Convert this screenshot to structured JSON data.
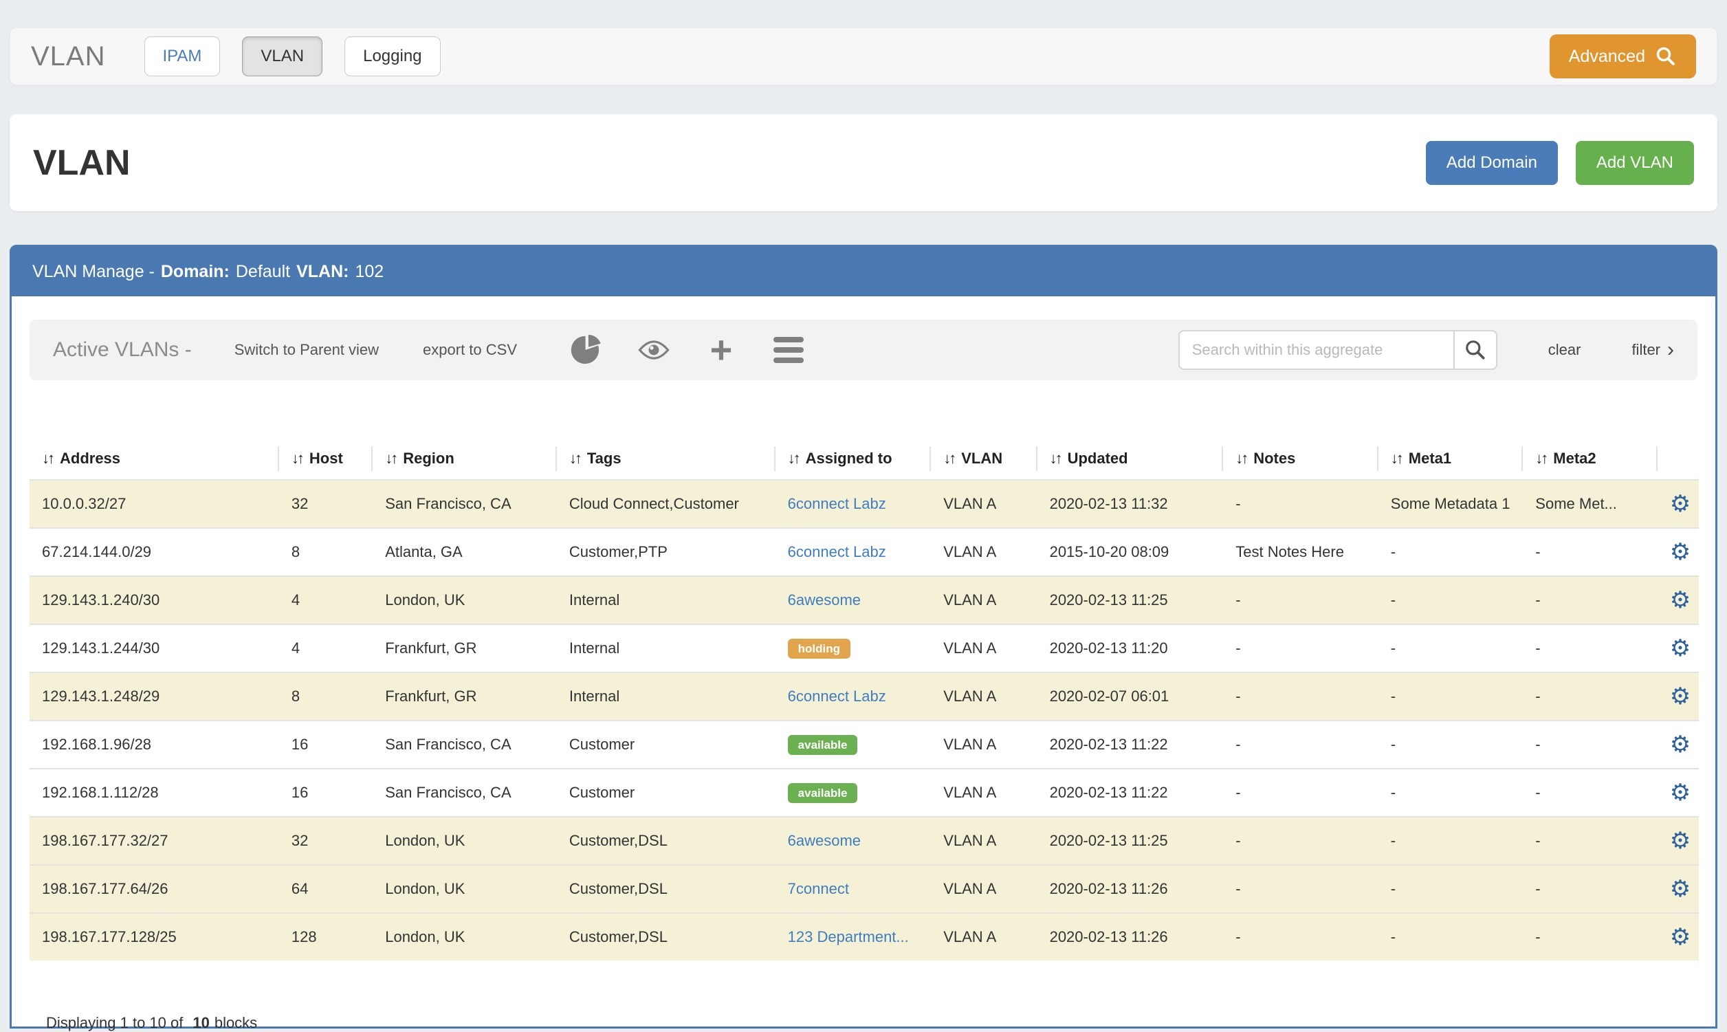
{
  "colors": {
    "accent_blue": "#4a79b2",
    "button_blue": "#4a7cb8",
    "button_green": "#67b04e",
    "advanced_orange": "#e0952f",
    "link_blue": "#3f7dbf",
    "badge_holding": "#e2a44c",
    "badge_available": "#6bb152",
    "row_highlight": "#f5f1d7",
    "gear_blue": "#2e619e"
  },
  "icons": {
    "sort": "↓↑",
    "plus": "+",
    "gear": "⚙",
    "filter_chevron": "›"
  },
  "topnav": {
    "brand": "VLAN",
    "tabs": [
      {
        "label": "IPAM",
        "active": false
      },
      {
        "label": "VLAN",
        "active": true
      },
      {
        "label": "Logging",
        "active": false
      }
    ],
    "advanced_label": "Advanced"
  },
  "header": {
    "title": "VLAN",
    "add_domain_label": "Add Domain",
    "add_vlan_label": "Add VLAN"
  },
  "panel": {
    "heading": {
      "manage": "VLAN Manage -",
      "domain_label": "Domain:",
      "domain_value": "Default",
      "vlan_label": "VLAN:",
      "vlan_value": "102"
    }
  },
  "toolbar": {
    "title": "Active VLANs -",
    "switch_label": "Switch to Parent view",
    "export_label": "export to CSV",
    "icon_names": [
      "pie-chart-icon",
      "eye-icon",
      "plus-icon",
      "menu-icon"
    ],
    "search_placeholder": "Search within this aggregate",
    "clear_label": "clear",
    "filter_label": "filter"
  },
  "table": {
    "columns": [
      {
        "label": "Address",
        "sortable": true
      },
      {
        "label": "Host",
        "sortable": true
      },
      {
        "label": "Region",
        "sortable": true
      },
      {
        "label": "Tags",
        "sortable": true
      },
      {
        "label": "Assigned to",
        "sortable": true
      },
      {
        "label": "VLAN",
        "sortable": true
      },
      {
        "label": "Updated",
        "sortable": true
      },
      {
        "label": "Notes",
        "sortable": true
      },
      {
        "label": "Meta1",
        "sortable": true
      },
      {
        "label": "Meta2",
        "sortable": true
      },
      {
        "label": "",
        "sortable": false
      }
    ],
    "rows": [
      {
        "address": "10.0.0.32/27",
        "host": "32",
        "region": "San Francisco, CA",
        "tags": "Cloud Connect,Customer",
        "assigned": {
          "kind": "link",
          "text": "6connect Labz"
        },
        "vlan": "VLAN A",
        "updated": "2020-02-13 11:32",
        "notes": "-",
        "meta1": "Some Metadata 1",
        "meta2": "Some Met...",
        "highlighted": true
      },
      {
        "address": "67.214.144.0/29",
        "host": "8",
        "region": "Atlanta, GA",
        "tags": "Customer,PTP",
        "assigned": {
          "kind": "link",
          "text": "6connect Labz"
        },
        "vlan": "VLAN A",
        "updated": "2015-10-20 08:09",
        "notes": "Test Notes Here",
        "meta1": "-",
        "meta2": "-",
        "highlighted": false
      },
      {
        "address": "129.143.1.240/30",
        "host": "4",
        "region": "London, UK",
        "tags": "Internal",
        "assigned": {
          "kind": "link",
          "text": "6awesome"
        },
        "vlan": "VLAN A",
        "updated": "2020-02-13 11:25",
        "notes": "-",
        "meta1": "-",
        "meta2": "-",
        "highlighted": true
      },
      {
        "address": "129.143.1.244/30",
        "host": "4",
        "region": "Frankfurt, GR",
        "tags": "Internal",
        "assigned": {
          "kind": "badge",
          "text": "holding",
          "variant": "holding"
        },
        "vlan": "VLAN A",
        "updated": "2020-02-13 11:20",
        "notes": "-",
        "meta1": "-",
        "meta2": "-",
        "highlighted": false
      },
      {
        "address": "129.143.1.248/29",
        "host": "8",
        "region": "Frankfurt, GR",
        "tags": "Internal",
        "assigned": {
          "kind": "link",
          "text": "6connect Labz"
        },
        "vlan": "VLAN A",
        "updated": "2020-02-07 06:01",
        "notes": "-",
        "meta1": "-",
        "meta2": "-",
        "highlighted": true
      },
      {
        "address": "192.168.1.96/28",
        "host": "16",
        "region": "San Francisco, CA",
        "tags": "Customer",
        "assigned": {
          "kind": "badge",
          "text": "available",
          "variant": "available"
        },
        "vlan": "VLAN A",
        "updated": "2020-02-13 11:22",
        "notes": "-",
        "meta1": "-",
        "meta2": "-",
        "highlighted": false
      },
      {
        "address": "192.168.1.112/28",
        "host": "16",
        "region": "San Francisco, CA",
        "tags": "Customer",
        "assigned": {
          "kind": "badge",
          "text": "available",
          "variant": "available"
        },
        "vlan": "VLAN A",
        "updated": "2020-02-13 11:22",
        "notes": "-",
        "meta1": "-",
        "meta2": "-",
        "highlighted": false
      },
      {
        "address": "198.167.177.32/27",
        "host": "32",
        "region": "London, UK",
        "tags": "Customer,DSL",
        "assigned": {
          "kind": "link",
          "text": "6awesome"
        },
        "vlan": "VLAN A",
        "updated": "2020-02-13 11:25",
        "notes": "-",
        "meta1": "-",
        "meta2": "-",
        "highlighted": true
      },
      {
        "address": "198.167.177.64/26",
        "host": "64",
        "region": "London, UK",
        "tags": "Customer,DSL",
        "assigned": {
          "kind": "link",
          "text": "7connect"
        },
        "vlan": "VLAN A",
        "updated": "2020-02-13 11:26",
        "notes": "-",
        "meta1": "-",
        "meta2": "-",
        "highlighted": true
      },
      {
        "address": "198.167.177.128/25",
        "host": "128",
        "region": "London, UK",
        "tags": "Customer,DSL",
        "assigned": {
          "kind": "link",
          "text": "123 Department..."
        },
        "vlan": "VLAN A",
        "updated": "2020-02-13 11:26",
        "notes": "-",
        "meta1": "-",
        "meta2": "-",
        "highlighted": true
      }
    ]
  },
  "footer": {
    "prefix": "Displaying 1 to 10 of",
    "count": "10",
    "suffix": "blocks"
  }
}
